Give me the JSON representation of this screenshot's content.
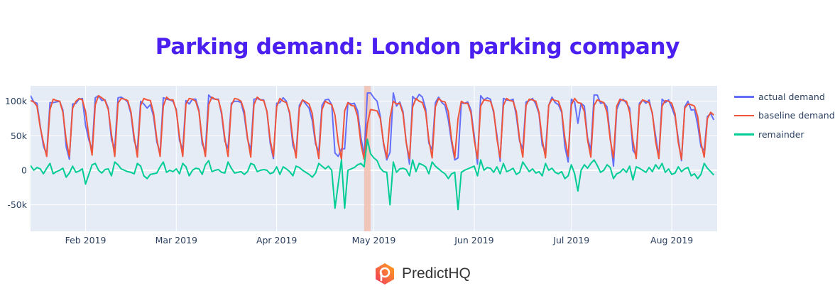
{
  "title": "Parking demand: London parking company",
  "brand": {
    "name": "PredictHQ",
    "logo_icon": "predicthq-hexagon-pin-logo"
  },
  "chart_data": {
    "type": "line",
    "title": "Parking demand: London parking company",
    "xlabel": "",
    "ylabel": "",
    "grid": true,
    "legend_position": "right",
    "plot_background": "#e5ecf6",
    "xlim": [
      "2019-01-15",
      "2019-08-15"
    ],
    "ylim": [
      -88.4,
      122.3
    ],
    "x_ticks": [
      {
        "date": "2019-02-01",
        "label": "Feb 2019"
      },
      {
        "date": "2019-03-01",
        "label": "Mar 2019"
      },
      {
        "date": "2019-04-01",
        "label": "Apr 2019"
      },
      {
        "date": "2019-05-01",
        "label": "May 2019"
      },
      {
        "date": "2019-06-01",
        "label": "Jun 2019"
      },
      {
        "date": "2019-07-01",
        "label": "Jul 2019"
      },
      {
        "date": "2019-08-01",
        "label": "Aug 2019"
      }
    ],
    "y_ticks": [
      {
        "value": 100,
        "label": "100k"
      },
      {
        "value": 50,
        "label": "50k"
      },
      {
        "value": 0,
        "label": "0"
      },
      {
        "value": -50,
        "label": "-50k"
      }
    ],
    "highlight_band": {
      "start": "2019-04-28",
      "end": "2019-04-30",
      "color": "#f2c2b4"
    },
    "x": [
      "2019-01-15",
      "2019-01-16",
      "2019-01-17",
      "2019-01-18",
      "2019-01-19",
      "2019-01-20",
      "2019-01-21",
      "2019-01-22",
      "2019-01-23",
      "2019-01-24",
      "2019-01-25",
      "2019-01-26",
      "2019-01-27",
      "2019-01-28",
      "2019-01-29",
      "2019-01-30",
      "2019-01-31",
      "2019-02-01",
      "2019-02-02",
      "2019-02-03",
      "2019-02-04",
      "2019-02-05",
      "2019-02-06",
      "2019-02-07",
      "2019-02-08",
      "2019-02-09",
      "2019-02-10",
      "2019-02-11",
      "2019-02-12",
      "2019-02-13",
      "2019-02-14",
      "2019-02-15",
      "2019-02-16",
      "2019-02-17",
      "2019-02-18",
      "2019-02-19",
      "2019-02-20",
      "2019-02-21",
      "2019-02-22",
      "2019-02-23",
      "2019-02-24",
      "2019-02-25",
      "2019-02-26",
      "2019-02-27",
      "2019-02-28",
      "2019-03-01",
      "2019-03-02",
      "2019-03-03",
      "2019-03-04",
      "2019-03-05",
      "2019-03-06",
      "2019-03-07",
      "2019-03-08",
      "2019-03-09",
      "2019-03-10",
      "2019-03-11",
      "2019-03-12",
      "2019-03-13",
      "2019-03-14",
      "2019-03-15",
      "2019-03-16",
      "2019-03-17",
      "2019-03-18",
      "2019-03-19",
      "2019-03-20",
      "2019-03-21",
      "2019-03-22",
      "2019-03-23",
      "2019-03-24",
      "2019-03-25",
      "2019-03-26",
      "2019-03-27",
      "2019-03-28",
      "2019-03-29",
      "2019-03-30",
      "2019-03-31",
      "2019-04-01",
      "2019-04-02",
      "2019-04-03",
      "2019-04-04",
      "2019-04-05",
      "2019-04-06",
      "2019-04-07",
      "2019-04-08",
      "2019-04-09",
      "2019-04-10",
      "2019-04-11",
      "2019-04-12",
      "2019-04-13",
      "2019-04-14",
      "2019-04-15",
      "2019-04-16",
      "2019-04-17",
      "2019-04-18",
      "2019-04-19",
      "2019-04-20",
      "2019-04-21",
      "2019-04-22",
      "2019-04-23",
      "2019-04-24",
      "2019-04-25",
      "2019-04-26",
      "2019-04-27",
      "2019-04-28",
      "2019-04-29",
      "2019-04-30",
      "2019-05-01",
      "2019-05-02",
      "2019-05-03",
      "2019-05-04",
      "2019-05-05",
      "2019-05-06",
      "2019-05-07",
      "2019-05-08",
      "2019-05-09",
      "2019-05-10",
      "2019-05-11",
      "2019-05-12",
      "2019-05-13",
      "2019-05-14",
      "2019-05-15",
      "2019-05-16",
      "2019-05-17",
      "2019-05-18",
      "2019-05-19",
      "2019-05-20",
      "2019-05-21",
      "2019-05-22",
      "2019-05-23",
      "2019-05-24",
      "2019-05-25",
      "2019-05-26",
      "2019-05-27",
      "2019-05-28",
      "2019-05-29",
      "2019-05-30",
      "2019-05-31",
      "2019-06-01",
      "2019-06-02",
      "2019-06-03",
      "2019-06-04",
      "2019-06-05",
      "2019-06-06",
      "2019-06-07",
      "2019-06-08",
      "2019-06-09",
      "2019-06-10",
      "2019-06-11",
      "2019-06-12",
      "2019-06-13",
      "2019-06-14",
      "2019-06-15",
      "2019-06-16",
      "2019-06-17",
      "2019-06-18",
      "2019-06-19",
      "2019-06-20",
      "2019-06-21",
      "2019-06-22",
      "2019-06-23",
      "2019-06-24",
      "2019-06-25",
      "2019-06-26",
      "2019-06-27",
      "2019-06-28",
      "2019-06-29",
      "2019-06-30",
      "2019-07-01",
      "2019-07-02",
      "2019-07-03",
      "2019-07-04",
      "2019-07-05",
      "2019-07-06",
      "2019-07-07",
      "2019-07-08",
      "2019-07-09",
      "2019-07-10",
      "2019-07-11",
      "2019-07-12",
      "2019-07-13",
      "2019-07-14",
      "2019-07-15",
      "2019-07-16",
      "2019-07-17",
      "2019-07-18",
      "2019-07-19",
      "2019-07-20",
      "2019-07-21",
      "2019-07-22",
      "2019-07-23",
      "2019-07-24",
      "2019-07-25",
      "2019-07-26",
      "2019-07-27",
      "2019-07-28",
      "2019-07-29",
      "2019-07-30",
      "2019-07-31",
      "2019-08-01",
      "2019-08-02",
      "2019-08-03",
      "2019-08-04",
      "2019-08-05",
      "2019-08-06",
      "2019-08-07",
      "2019-08-08",
      "2019-08-09",
      "2019-08-10",
      "2019-08-11",
      "2019-08-12",
      "2019-08-13",
      "2019-08-14"
    ],
    "series": [
      {
        "name": "actual demand",
        "color": "#636efa",
        "values": [
          108,
          99,
          97,
          64,
          35,
          23,
          98,
          98,
          99,
          100,
          87,
          34,
          16,
          96,
          97,
          103,
          104,
          65,
          44,
          30,
          105,
          108,
          101,
          102,
          90,
          44,
          32,
          105,
          106,
          103,
          99,
          82,
          43,
          29,
          100,
          96,
          90,
          95,
          78,
          41,
          25,
          105,
          103,
          102,
          100,
          88,
          43,
          30,
          101,
          96,
          103,
          103,
          87,
          38,
          28,
          109,
          104,
          103,
          103,
          81,
          42,
          32,
          97,
          100,
          100,
          98,
          80,
          45,
          29,
          103,
          104,
          102,
          102,
          85,
          39,
          17,
          97,
          98,
          105,
          100,
          82,
          36,
          24,
          94,
          102,
          96,
          90,
          72,
          38,
          27,
          94,
          102,
          103,
          95,
          25,
          20,
          31,
          31,
          98,
          96,
          97,
          86,
          48,
          21,
          112,
          112,
          105,
          100,
          78,
          38,
          15,
          26,
          112,
          93,
          99,
          85,
          41,
          9,
          107,
          102,
          110,
          106,
          89,
          39,
          30,
          98,
          106,
          98,
          94,
          73,
          40,
          15,
          18,
          97,
          97,
          99,
          87,
          50,
          9,
          108,
          102,
          105,
          103,
          83,
          51,
          13,
          104,
          102,
          101,
          103,
          79,
          42,
          31,
          99,
          101,
          104,
          96,
          82,
          36,
          28,
          94,
          106,
          98,
          95,
          84,
          34,
          12,
          103,
          99,
          68,
          97,
          93,
          47,
          29,
          109,
          109,
          97,
          98,
          92,
          48,
          6,
          88,
          100,
          103,
          97,
          90,
          29,
          22,
          97,
          102,
          97,
          102,
          81,
          50,
          19,
          103,
          98,
          102,
          91,
          78,
          45,
          14,
          92,
          100,
          87,
          88,
          66,
          34,
          29,
          78,
          82,
          73
        ]
      },
      {
        "name": "baseline demand",
        "color": "#ef553b",
        "values": [
          101,
          99,
          93,
          62,
          40,
          20,
          88,
          103,
          101,
          100,
          84,
          44,
          20,
          90,
          100,
          104,
          102,
          85,
          50,
          22,
          95,
          108,
          105,
          101,
          88,
          52,
          20,
          97,
          104,
          103,
          101,
          85,
          48,
          19,
          94,
          104,
          102,
          101,
          83,
          45,
          20,
          93,
          106,
          102,
          102,
          86,
          48,
          20,
          96,
          104,
          103,
          100,
          85,
          44,
          20,
          95,
          106,
          103,
          102,
          84,
          46,
          20,
          94,
          104,
          103,
          100,
          86,
          47,
          19,
          95,
          106,
          102,
          101,
          85,
          44,
          20,
          92,
          104,
          100,
          98,
          84,
          44,
          18,
          90,
          102,
          99,
          96,
          82,
          42,
          17,
          88,
          100,
          97,
          95,
          80,
          40,
          16,
          86,
          98,
          94,
          93,
          78,
          38,
          16,
          67,
          88,
          87,
          86,
          75,
          40,
          18,
          76,
          100,
          96,
          97,
          82,
          40,
          17,
          92,
          104,
          100,
          98,
          84,
          44,
          18,
          92,
          104,
          100,
          99,
          85,
          45,
          18,
          75,
          100,
          97,
          97,
          83,
          44,
          17,
          93,
          102,
          101,
          100,
          86,
          46,
          18,
          94,
          104,
          101,
          100,
          85,
          45,
          19,
          94,
          103,
          102,
          100,
          84,
          44,
          18,
          94,
          103,
          101,
          100,
          86,
          46,
          20,
          95,
          104,
          98,
          97,
          85,
          44,
          19,
          94,
          102,
          100,
          98,
          84,
          44,
          18,
          93,
          103,
          101,
          100,
          84,
          43,
          17,
          94,
          102,
          100,
          98,
          83,
          42,
          17,
          93,
          101,
          100,
          97,
          82,
          40,
          16,
          90,
          96,
          95,
          93,
          78,
          40,
          19,
          75,
          84,
          80
        ]
      },
      {
        "name": "remainder",
        "color": "#00cc96",
        "values": [
          7,
          0,
          4,
          2,
          -5,
          3,
          10,
          -5,
          -2,
          0,
          3,
          -10,
          -4,
          6,
          -3,
          -1,
          2,
          -20,
          -6,
          8,
          10,
          0,
          -4,
          1,
          2,
          -8,
          12,
          8,
          2,
          0,
          -2,
          -3,
          -5,
          10,
          6,
          -8,
          -12,
          -6,
          -5,
          -4,
          5,
          12,
          -3,
          0,
          -2,
          2,
          -5,
          10,
          5,
          -8,
          0,
          3,
          2,
          -6,
          8,
          14,
          -2,
          0,
          1,
          -3,
          -4,
          12,
          3,
          -4,
          -3,
          -2,
          -6,
          -2,
          10,
          8,
          -2,
          0,
          1,
          0,
          -5,
          -3,
          5,
          -6,
          5,
          2,
          -2,
          -8,
          6,
          4,
          0,
          -3,
          -6,
          -10,
          -4,
          10,
          6,
          2,
          6,
          0,
          -55,
          -20,
          15,
          -55,
          0,
          2,
          4,
          8,
          10,
          5,
          45,
          24,
          18,
          14,
          3,
          -2,
          -3,
          -50,
          12,
          -3,
          2,
          3,
          1,
          -8,
          15,
          -2,
          10,
          8,
          5,
          -5,
          12,
          6,
          2,
          -2,
          -5,
          -12,
          -5,
          -3,
          -57,
          -3,
          0,
          2,
          4,
          6,
          -8,
          15,
          0,
          4,
          3,
          -3,
          5,
          -5,
          10,
          -2,
          0,
          3,
          -6,
          -3,
          12,
          5,
          -2,
          2,
          -4,
          -2,
          -8,
          10,
          0,
          3,
          -3,
          -5,
          -2,
          -12,
          -8,
          8,
          -5,
          -30,
          0,
          8,
          3,
          10,
          15,
          7,
          -3,
          0,
          8,
          4,
          -12,
          -5,
          -3,
          2,
          -3,
          6,
          -14,
          5,
          3,
          0,
          -3,
          4,
          -2,
          8,
          2,
          10,
          -3,
          2,
          -6,
          -4,
          5,
          -2,
          2,
          4,
          -8,
          -5,
          -12,
          -6,
          10,
          3,
          -2,
          -7
        ]
      }
    ]
  }
}
